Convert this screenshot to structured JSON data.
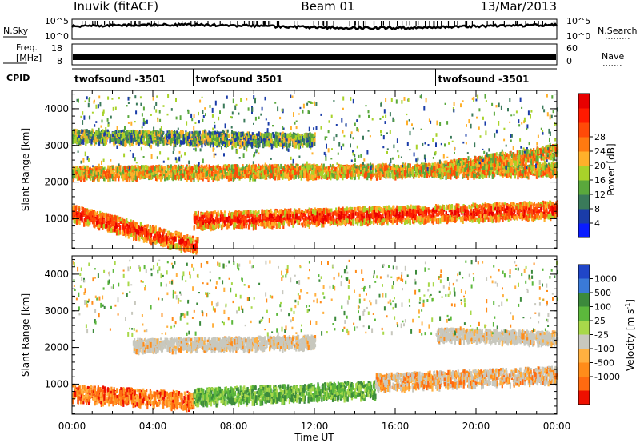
{
  "header": {
    "station": "Inuvik (fitACF)",
    "beam": "Beam 01",
    "date": "13/Mar/2013"
  },
  "strips": {
    "nsky": {
      "label": "N.Sky",
      "ticks": [
        "10^5",
        "10^0"
      ]
    },
    "nsearch": {
      "label": "N.Search",
      "ticks": [
        "10^5",
        "10^0"
      ]
    },
    "freq": {
      "label_line1": "Freq.",
      "label_line2": "[MHz]",
      "ticks": [
        "18",
        "8"
      ]
    },
    "nave": {
      "label": "Nave",
      "ticks": [
        "60",
        "0"
      ]
    },
    "cpid": {
      "label": "CPID"
    }
  },
  "chart_data": [
    {
      "type": "line",
      "name": "noise",
      "x_range_hours": [
        0,
        24
      ],
      "series": [
        {
          "name": "N.Sky"
        },
        {
          "name": "N.Search"
        }
      ]
    },
    {
      "type": "line",
      "name": "frequency-nave",
      "x_range_hours": [
        0,
        24
      ],
      "series": [
        {
          "name": "Freq.",
          "note_value_mhz": 10.5
        },
        {
          "name": "Nave"
        }
      ]
    },
    {
      "type": "table",
      "name": "cpid-timeline",
      "segments": [
        {
          "start_hour": 0,
          "label": "twofsound -3501"
        },
        {
          "start_hour": 6,
          "label": "twofsound 3501"
        },
        {
          "start_hour": 18,
          "label": "twofsound -3501"
        }
      ]
    },
    {
      "type": "heatmap",
      "name": "power",
      "ylabel": "Slant Range [km]",
      "ylim": [
        180,
        4500
      ],
      "yticks": [
        1000,
        2000,
        3000,
        4000
      ],
      "x_range_hours": [
        0,
        24
      ],
      "colorbar": {
        "label": "Power [dB]",
        "tick_labels": [
          "4",
          "8",
          "12",
          "16",
          "20",
          "24",
          "28"
        ],
        "colors": [
          "#0a1cff",
          "#1a3ca8",
          "#3a7a5a",
          "#5aa83c",
          "#a8d22a",
          "#ffb02a",
          "#ff7a10",
          "#ff4a08",
          "#ff1a00",
          "#e80000"
        ]
      },
      "echo_bands": [
        {
          "start_hour": 0,
          "end_hour": 6.2,
          "range_km_start": 1200,
          "range_km_end": 300,
          "level": "high"
        },
        {
          "start_hour": 6,
          "end_hour": 24,
          "range_km_start": 1000,
          "range_km_end": 1300,
          "level": "high"
        },
        {
          "start_hour": 0,
          "end_hour": 24,
          "range_km_start": 2300,
          "range_km_end": 2400,
          "level": "medium"
        },
        {
          "start_hour": 0,
          "end_hour": 12,
          "range_km_start": 3300,
          "range_km_end": 3200,
          "level": "low"
        },
        {
          "start_hour": 18,
          "end_hour": 24,
          "range_km_start": 2400,
          "range_km_end": 2900,
          "level": "medium"
        }
      ]
    },
    {
      "type": "heatmap",
      "name": "velocity",
      "ylabel": "Slant Range [km]",
      "ylim": [
        180,
        4500
      ],
      "yticks": [
        1000,
        2000,
        3000,
        4000
      ],
      "xlabel": "Time UT",
      "x_ticks": [
        "00:00",
        "04:00",
        "08:00",
        "12:00",
        "16:00",
        "20:00",
        "00:00"
      ],
      "x_range_hours": [
        0,
        24
      ],
      "colorbar": {
        "label_main": "Velocity",
        "label_units": "[m s",
        "label_exp": "-1",
        "label_close": "]",
        "tick_labels": [
          "1000",
          "500",
          "100",
          "25",
          "-25",
          "-100",
          "-500",
          "-1000"
        ],
        "colors": [
          "#2046c8",
          "#3a7ad8",
          "#3c8a3c",
          "#5cb83c",
          "#a8d84a",
          "#c8c8be",
          "#ffb040",
          "#ff8c1a",
          "#ff6a10",
          "#ee1000"
        ]
      },
      "echo_bands": [
        {
          "start_hour": 0,
          "end_hour": 6,
          "range_km_start": 800,
          "range_km_end": 600,
          "level": "negative"
        },
        {
          "start_hour": 6,
          "end_hour": 15,
          "range_km_start": 700,
          "range_km_end": 900,
          "level": "positive"
        },
        {
          "start_hour": 15,
          "end_hour": 24,
          "range_km_start": 1100,
          "range_km_end": 1300,
          "level": "mixed"
        },
        {
          "start_hour": 3,
          "end_hour": 12,
          "range_km_start": 2100,
          "range_km_end": 2200,
          "level": "ground"
        },
        {
          "start_hour": 18,
          "end_hour": 24,
          "range_km_start": 2400,
          "range_km_end": 2300,
          "level": "ground"
        }
      ]
    }
  ]
}
